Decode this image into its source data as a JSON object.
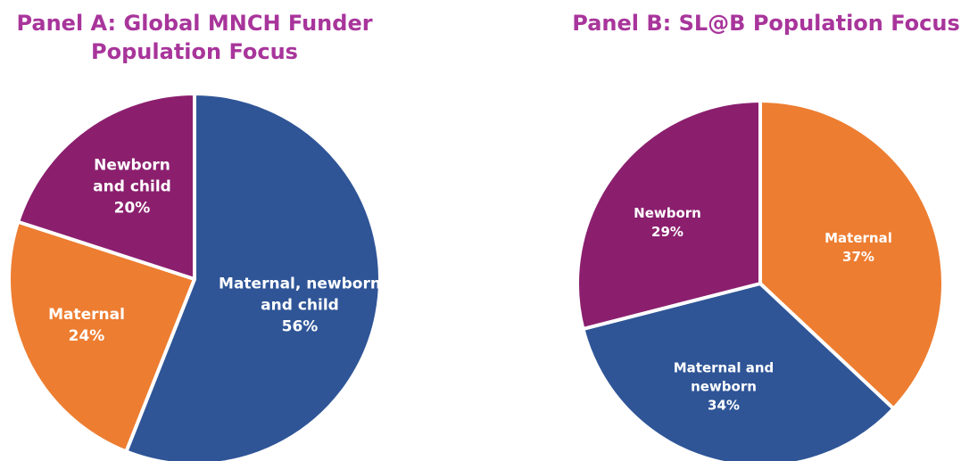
{
  "chart_data": [
    {
      "type": "pie",
      "title": "Panel A: Global MNCH Funder Population Focus",
      "categories": [
        "Maternal, newborn and child",
        "Maternal",
        "Newborn and child"
      ],
      "values": [
        56,
        24,
        20
      ],
      "value_labels": [
        "56%",
        "24%",
        "20%"
      ],
      "colors": [
        "#2f5597",
        "#ed7d31",
        "#8b1f6e"
      ]
    },
    {
      "type": "pie",
      "title": "Panel B: SL@B Population Focus",
      "categories": [
        "Maternal",
        "Maternal and newborn",
        "Newborn"
      ],
      "values": [
        37,
        34,
        29
      ],
      "value_labels": [
        "37%",
        "34%",
        "29%"
      ],
      "colors": [
        "#ed7d31",
        "#2f5597",
        "#8b1f6e"
      ]
    }
  ]
}
